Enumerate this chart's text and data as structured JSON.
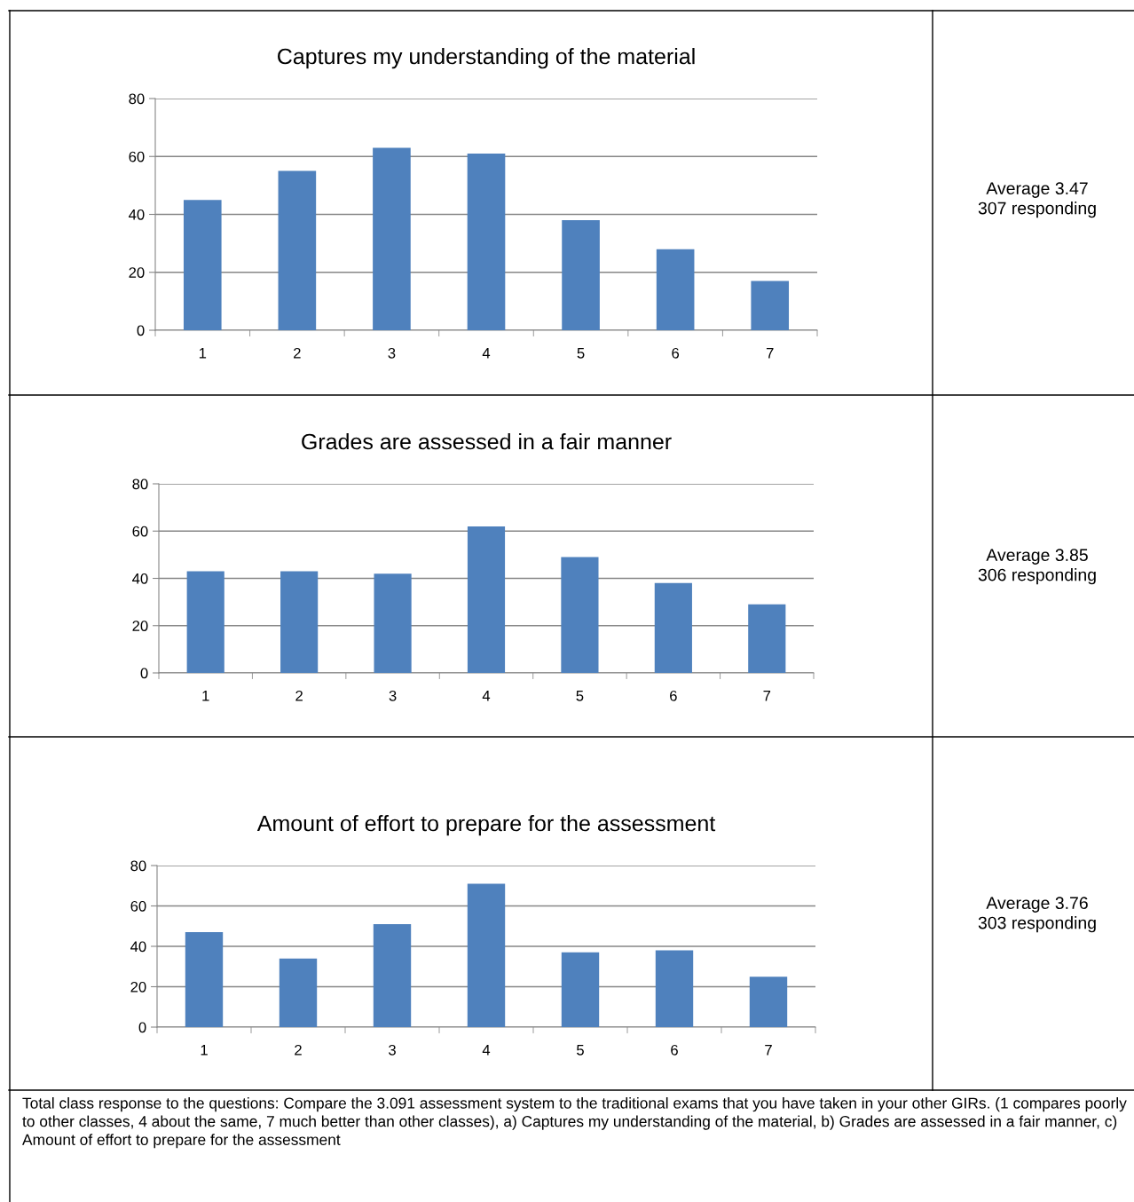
{
  "chart_data": [
    {
      "type": "bar",
      "title": "Captures my understanding of the material",
      "categories": [
        "1",
        "2",
        "3",
        "4",
        "5",
        "6",
        "7"
      ],
      "values": [
        45,
        55,
        63,
        61,
        38,
        28,
        17
      ],
      "color": "#4f81bd",
      "ylim": [
        0,
        80
      ],
      "yticks": [
        0,
        20,
        40,
        60,
        80
      ],
      "grid": "y",
      "annotations": [
        "Average 3.47\n307 responding"
      ]
    },
    {
      "type": "bar",
      "title": "Grades are assessed in a fair manner",
      "categories": [
        "1",
        "2",
        "3",
        "4",
        "5",
        "6",
        "7"
      ],
      "values": [
        43,
        43,
        42,
        62,
        49,
        38,
        29
      ],
      "color": "#4f81bd",
      "ylim": [
        0,
        80
      ],
      "yticks": [
        0,
        20,
        40,
        60,
        80
      ],
      "grid": "y",
      "annotations": [
        "Average 3.85\n306 responding"
      ]
    },
    {
      "type": "bar",
      "title": "Amount of effort to prepare for the assessment",
      "categories": [
        "1",
        "2",
        "3",
        "4",
        "5",
        "6",
        "7"
      ],
      "values": [
        47,
        34,
        51,
        71,
        37,
        38,
        25
      ],
      "color": "#4f81bd",
      "ylim": [
        0,
        80
      ],
      "yticks": [
        0,
        20,
        40,
        60,
        80
      ],
      "grid": "y",
      "annotations": [
        "Average 3.76\n303 responding"
      ]
    },
    {
      "type": "other",
      "annotations": [
        "Total class response to the questions: Compare the 3.091 assessment system to the traditional exams that you have taken in your other GIRs. (1 compares poorly to other classes, 4 about the same, 7 much better than other classes), a) Captures my understanding of the material, b) Grades are assessed in a fair manner, c) Amount of effort to prepare for the assessment"
      ]
    }
  ]
}
